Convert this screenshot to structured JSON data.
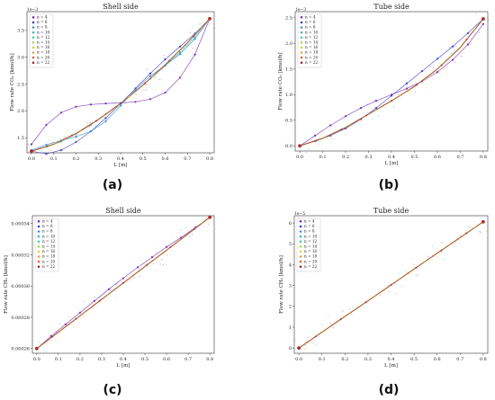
{
  "legend_labels": [
    "n = 4",
    "n = 6",
    "n = 8",
    "n = 10",
    "n = 12",
    "n = 14",
    "n = 16",
    "n = 18",
    "n = 20",
    "n = 22"
  ],
  "colors": [
    "#7a2fbf",
    "#3b3fc8",
    "#3f8fd8",
    "#3fbac8",
    "#3fd8a0",
    "#9ee04a",
    "#d8d83a",
    "#e8a23a",
    "#e06a3a",
    "#b02c2c"
  ],
  "chart_data": [
    {
      "type": "line",
      "title": "Shell side",
      "caption": "(a)",
      "xlabel": "L [m]",
      "ylabel": "Flow rate CO₂ [kmol/h]",
      "scale_label": "1e−3",
      "xlim": [
        -0.02,
        0.82
      ],
      "ylim": [
        1.22,
        3.85
      ],
      "xticks": [
        0.0,
        0.1,
        0.2,
        0.3,
        0.4,
        0.5,
        0.6,
        0.7,
        0.8
      ],
      "xtick_labels": [
        "0.0",
        "0.1",
        "0.2",
        "0.3",
        "0.4",
        "0.5",
        "0.6",
        "0.7",
        "0.8"
      ],
      "yticks": [
        1.5,
        2.0,
        2.5,
        3.0,
        3.5
      ],
      "ytick_labels": [
        "1.5",
        "2.0",
        "2.5",
        "3.0",
        "3.5"
      ],
      "legend": "top-left",
      "main_curve": {
        "x": [
          0.0,
          0.1,
          0.2,
          0.3,
          0.4,
          0.5,
          0.6,
          0.7,
          0.8
        ],
        "y": [
          1.25,
          1.38,
          1.58,
          1.84,
          2.14,
          2.48,
          2.86,
          3.27,
          3.72
        ]
      },
      "series": [
        {
          "name": "n = 4",
          "x": [
            0.0,
            0.0667,
            0.1333,
            0.2,
            0.2667,
            0.3333,
            0.4,
            0.4667,
            0.5333,
            0.6,
            0.6667,
            0.7333,
            0.8
          ],
          "y": [
            1.38,
            1.74,
            1.97,
            2.08,
            2.12,
            2.14,
            2.15,
            2.17,
            2.22,
            2.34,
            2.62,
            3.05,
            3.72
          ]
        },
        {
          "name": "n = 6",
          "x": [
            0.0,
            0.0667,
            0.1333,
            0.2,
            0.2667,
            0.3333,
            0.4,
            0.4667,
            0.5333,
            0.6,
            0.6667,
            0.7333,
            0.8
          ],
          "y": [
            1.25,
            1.2,
            1.27,
            1.42,
            1.62,
            1.87,
            2.14,
            2.42,
            2.7,
            2.96,
            3.2,
            3.44,
            3.72
          ]
        },
        {
          "name": "n = 8",
          "x": [
            0.0,
            0.0667,
            0.1333,
            0.2,
            0.2667,
            0.3333,
            0.4,
            0.4667,
            0.5333,
            0.6,
            0.6667,
            0.7333,
            0.8
          ],
          "y": [
            1.27,
            1.37,
            1.45,
            1.52,
            1.62,
            1.81,
            2.1,
            2.4,
            2.65,
            2.85,
            3.06,
            3.34,
            3.72
          ]
        },
        {
          "name": "n = 10",
          "x": [
            0.0,
            0.0667,
            0.1333,
            0.2,
            0.2667,
            0.3333,
            0.4,
            0.4667,
            0.5333,
            0.6,
            0.6667,
            0.7333,
            0.8
          ],
          "y": [
            1.25,
            1.33,
            1.43,
            1.57,
            1.74,
            1.94,
            2.15,
            2.37,
            2.6,
            2.84,
            3.09,
            3.37,
            3.72
          ]
        }
      ]
    },
    {
      "type": "line",
      "title": "Tube side",
      "caption": "(b)",
      "xlabel": "L [m]",
      "ylabel": "Flow rate CO₂ [kmol/h]",
      "scale_label": "1e−3",
      "xlim": [
        -0.02,
        0.82
      ],
      "ylim": [
        -0.1,
        2.62
      ],
      "xticks": [
        0.0,
        0.1,
        0.2,
        0.3,
        0.4,
        0.5,
        0.6,
        0.7,
        0.8
      ],
      "xtick_labels": [
        "0.0",
        "0.1",
        "0.2",
        "0.3",
        "0.4",
        "0.5",
        "0.6",
        "0.7",
        "0.8"
      ],
      "yticks": [
        0.0,
        0.5,
        1.0,
        1.5,
        2.0,
        2.5
      ],
      "ytick_labels": [
        "0.0",
        "0.5",
        "1.0",
        "1.5",
        "2.0",
        "2.5"
      ],
      "legend": "top-left",
      "main_curve": {
        "x": [
          0.0,
          0.1,
          0.2,
          0.3,
          0.4,
          0.5,
          0.6,
          0.7,
          0.8
        ],
        "y": [
          0.0,
          0.15,
          0.36,
          0.62,
          0.88,
          1.16,
          1.5,
          1.92,
          2.48
        ]
      },
      "series": [
        {
          "name": "n = 4",
          "x": [
            0.0,
            0.0667,
            0.1333,
            0.2,
            0.2667,
            0.3333,
            0.4,
            0.4667,
            0.5333,
            0.6,
            0.6667,
            0.7333,
            0.8
          ],
          "y": [
            0.0,
            0.2,
            0.4,
            0.58,
            0.74,
            0.88,
            1.0,
            1.12,
            1.26,
            1.44,
            1.68,
            1.98,
            2.38
          ]
        },
        {
          "name": "n = 6",
          "x": [
            0.0,
            0.0667,
            0.1333,
            0.2,
            0.2667,
            0.3333,
            0.4,
            0.4667,
            0.5333,
            0.6,
            0.6667,
            0.7333,
            0.8
          ],
          "y": [
            0.0,
            0.09,
            0.2,
            0.34,
            0.52,
            0.74,
            0.98,
            1.22,
            1.46,
            1.7,
            1.94,
            2.2,
            2.48
          ]
        }
      ]
    },
    {
      "type": "line",
      "title": "Shell side",
      "caption": "(c)",
      "xlabel": "L [m]",
      "ylabel": "Flow rate CH₄ [kmol/h]",
      "scale_label": "",
      "xlim": [
        -0.02,
        0.82
      ],
      "ylim": [
        0.000257,
        0.000345
      ],
      "xticks": [
        0.0,
        0.1,
        0.2,
        0.3,
        0.4,
        0.5,
        0.6,
        0.7,
        0.8
      ],
      "xtick_labels": [
        "0.0",
        "0.1",
        "0.2",
        "0.3",
        "0.4",
        "0.5",
        "0.6",
        "0.7",
        "0.8"
      ],
      "yticks": [
        0.00026,
        0.00028,
        0.0003,
        0.00032,
        0.00034
      ],
      "ytick_labels": [
        "0.00026",
        "0.00028",
        "0.00030",
        "0.00032",
        "0.00034"
      ],
      "legend": "top-left",
      "main_curve": {
        "x": [
          0.0,
          0.1,
          0.2,
          0.3,
          0.4,
          0.5,
          0.6,
          0.7,
          0.8
        ],
        "y": [
          0.00026,
          0.0002705,
          0.000281,
          0.0002915,
          0.000302,
          0.0003125,
          0.000323,
          0.0003335,
          0.000344
        ]
      },
      "series": [
        {
          "name": "n = 4",
          "x": [
            0.0,
            0.0667,
            0.1333,
            0.2,
            0.2667,
            0.3333,
            0.4,
            0.4667,
            0.5333,
            0.6,
            0.6667,
            0.7333,
            0.8
          ],
          "y": [
            0.00026,
            0.000268,
            0.0002755,
            0.000283,
            0.0002905,
            0.000298,
            0.000305,
            0.000312,
            0.0003185,
            0.000325,
            0.000331,
            0.0003375,
            0.000344
          ]
        }
      ]
    },
    {
      "type": "line",
      "title": "Tube side",
      "caption": "(d)",
      "xlabel": "L [m]",
      "ylabel": "Flow rate CH₄ [kmol/h]",
      "scale_label": "1e−5",
      "xlim": [
        -0.02,
        0.82
      ],
      "ylim": [
        -0.25,
        6.35
      ],
      "xticks": [
        0.0,
        0.1,
        0.2,
        0.3,
        0.4,
        0.5,
        0.6,
        0.7,
        0.8
      ],
      "xtick_labels": [
        "0.0",
        "0.1",
        "0.2",
        "0.3",
        "0.4",
        "0.5",
        "0.6",
        "0.7",
        "0.8"
      ],
      "yticks": [
        0,
        1,
        2,
        3,
        4,
        5,
        6
      ],
      "ytick_labels": [
        "0",
        "1",
        "2",
        "3",
        "4",
        "5",
        "6"
      ],
      "legend": "top-left",
      "main_curve": {
        "x": [
          0.0,
          0.1,
          0.2,
          0.3,
          0.4,
          0.5,
          0.6,
          0.7,
          0.8
        ],
        "y": [
          0.0,
          0.76,
          1.52,
          2.27,
          3.03,
          3.79,
          4.55,
          5.3,
          6.06
        ]
      },
      "series": []
    }
  ]
}
